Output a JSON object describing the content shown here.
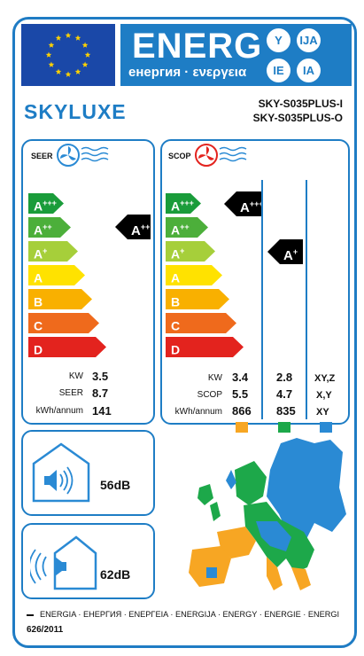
{
  "header": {
    "title": "ENERG",
    "subtitle": "енергия · ενεργεια",
    "languages": [
      "Y",
      "IJA",
      "IE",
      "IA"
    ],
    "brand": "SKYLUXE",
    "model_indoor": "SKY-S035PLUS-I",
    "model_outdoor": "SKY-S035PLUS-O"
  },
  "scale": [
    {
      "cls": "A",
      "sup": "+++",
      "color": "#1a9c3a"
    },
    {
      "cls": "A",
      "sup": "++",
      "color": "#4caf3a"
    },
    {
      "cls": "A",
      "sup": "+",
      "color": "#a6cf3a"
    },
    {
      "cls": "A",
      "sup": "",
      "color": "#ffe200"
    },
    {
      "cls": "B",
      "sup": "",
      "color": "#f9b000"
    },
    {
      "cls": "C",
      "sup": "",
      "color": "#ef6a1c"
    },
    {
      "cls": "D",
      "sup": "",
      "color": "#e3231e"
    }
  ],
  "seer": {
    "title": "SEER",
    "rating": "A",
    "rating_sup": "++",
    "labels": [
      "KW",
      "SEER",
      "kWh/annum"
    ],
    "values": [
      "3.5",
      "8.7",
      "141"
    ]
  },
  "scop": {
    "title": "SCOP",
    "labels": [
      "KW",
      "SCOP",
      "kWh/annum"
    ],
    "warmer": {
      "rating": "A",
      "rating_sup": "+++",
      "values": [
        "3.4",
        "5.5",
        "866"
      ],
      "color": "#f7a623"
    },
    "average": {
      "rating": "A",
      "rating_sup": "+",
      "values": [
        "2.8",
        "4.7",
        "835"
      ],
      "color": "#1da84a"
    },
    "colder": {
      "values": [
        "XY,Z",
        "X,Y",
        "XY"
      ],
      "color": "#2a8ad4"
    }
  },
  "noise": {
    "indoor": "56dB",
    "outdoor": "62dB"
  },
  "footer": {
    "languages": "ENERGIA · ЕНЕРГИЯ · ΕΝΕΡΓΕΙΑ · ENERGIJA · ENERGY · ENERGIE · ENERGI",
    "regulation": "626/2011"
  },
  "colors": {
    "frame": "#1e7dc5",
    "eu_blue": "#1a48a8",
    "star": "#ffd200"
  },
  "icons": [
    "eu-flag-icon",
    "fan-icon",
    "speaker-icon",
    "house-icon",
    "europe-map-icon"
  ]
}
